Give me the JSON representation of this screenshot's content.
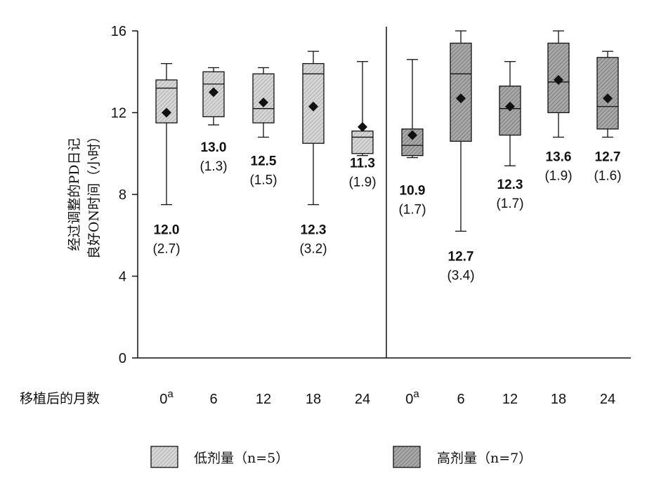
{
  "colors": {
    "low_dose_fill": "#cfcfcf",
    "high_dose_fill": "#a3a3a3",
    "stroke": "#111111"
  },
  "chart_data": {
    "type": "box",
    "ylabel_line1": "经过调整的PD日记",
    "ylabel_line2": "良好ON时间（小时）",
    "xlabel": "移植后的月数",
    "ylim": [
      0,
      16
    ],
    "yticks": [
      "0",
      "4",
      "8",
      "12",
      "16"
    ],
    "grid": false,
    "legend_position": "bottom",
    "groups": [
      {
        "name": "低剂量（n=5）",
        "months": [
          {
            "x": "0",
            "x_sup": "a",
            "min": 7.5,
            "q1": 11.5,
            "median": 13.2,
            "q3": 13.6,
            "max": 14.4,
            "mean": 12.0,
            "mean_label": "12.0",
            "sd_label": "(2.7)"
          },
          {
            "x": "6",
            "x_sup": "",
            "min": 11.4,
            "q1": 11.8,
            "median": 13.4,
            "q3": 14.0,
            "max": 14.2,
            "mean": 13.0,
            "mean_label": "13.0",
            "sd_label": "(1.3)"
          },
          {
            "x": "12",
            "x_sup": "",
            "min": 10.8,
            "q1": 11.5,
            "median": 12.2,
            "q3": 13.9,
            "max": 14.2,
            "mean": 12.5,
            "mean_label": "12.5",
            "sd_label": "(1.5)"
          },
          {
            "x": "18",
            "x_sup": "",
            "min": 7.5,
            "q1": 10.5,
            "median": 13.9,
            "q3": 14.4,
            "max": 15.0,
            "mean": 12.3,
            "mean_label": "12.3",
            "sd_label": "(3.2)"
          },
          {
            "x": "24",
            "x_sup": "",
            "min": 9.9,
            "q1": 10.0,
            "median": 10.8,
            "q3": 11.1,
            "max": 14.5,
            "mean": 11.3,
            "mean_label": "11.3",
            "sd_label": "(1.9)"
          }
        ]
      },
      {
        "name": "高剂量（n=7）",
        "months": [
          {
            "x": "0",
            "x_sup": "a",
            "min": 9.8,
            "q1": 9.9,
            "median": 10.4,
            "q3": 11.2,
            "max": 14.6,
            "mean": 10.9,
            "mean_label": "10.9",
            "sd_label": "(1.7)"
          },
          {
            "x": "6",
            "x_sup": "",
            "min": 6.2,
            "q1": 10.6,
            "median": 13.9,
            "q3": 15.4,
            "max": 16.0,
            "mean": 12.7,
            "mean_label": "12.7",
            "sd_label": "(3.4)"
          },
          {
            "x": "12",
            "x_sup": "",
            "min": 9.4,
            "q1": 10.9,
            "median": 12.2,
            "q3": 13.3,
            "max": 14.5,
            "mean": 12.3,
            "mean_label": "12.3",
            "sd_label": "(1.7)"
          },
          {
            "x": "18",
            "x_sup": "",
            "min": 10.8,
            "q1": 12.0,
            "median": 13.5,
            "q3": 15.4,
            "max": 16.0,
            "mean": 13.6,
            "mean_label": "13.6",
            "sd_label": "(1.9)"
          },
          {
            "x": "24",
            "x_sup": "",
            "min": 10.8,
            "q1": 11.2,
            "median": 12.3,
            "q3": 14.7,
            "max": 15.0,
            "mean": 12.7,
            "mean_label": "12.7",
            "sd_label": "(1.6)"
          }
        ]
      }
    ]
  }
}
